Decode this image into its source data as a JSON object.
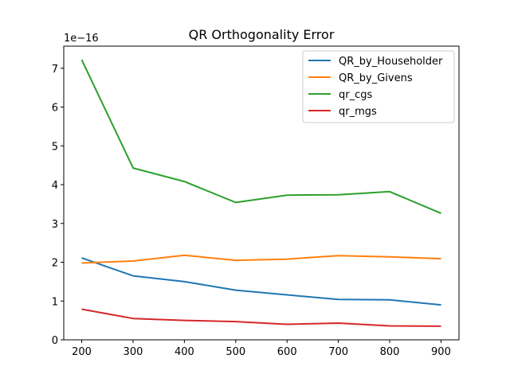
{
  "chart_data": {
    "type": "line",
    "title": "QR Orthogonality Error",
    "xlabel": "",
    "ylabel": "",
    "y_offset_label": "1e−16",
    "x": [
      200,
      300,
      400,
      500,
      600,
      700,
      800,
      900
    ],
    "x_ticks": [
      "200",
      "300",
      "400",
      "500",
      "600",
      "700",
      "800",
      "900"
    ],
    "y_ticks": [
      "0",
      "1",
      "2",
      "3",
      "4",
      "5",
      "6",
      "7"
    ],
    "xlim": [
      165,
      935
    ],
    "ylim": [
      0,
      7.57
    ],
    "grid": false,
    "legend_position": "top-right",
    "series": [
      {
        "name": "QR_by_Householder",
        "color": "#1f77b4",
        "values": [
          2.11,
          1.65,
          1.5,
          1.28,
          1.16,
          1.04,
          1.03,
          0.9
        ]
      },
      {
        "name": "QR_by_Givens",
        "color": "#ff7f0e",
        "values": [
          1.98,
          2.03,
          2.18,
          2.05,
          2.08,
          2.17,
          2.14,
          2.09
        ]
      },
      {
        "name": "qr_cgs",
        "color": "#2ca02c",
        "values": [
          7.22,
          4.43,
          4.08,
          3.54,
          3.73,
          3.74,
          3.82,
          3.26
        ]
      },
      {
        "name": "qr_mgs",
        "color": "#d62728",
        "values": [
          0.79,
          0.55,
          0.5,
          0.47,
          0.4,
          0.43,
          0.36,
          0.35
        ]
      }
    ]
  }
}
